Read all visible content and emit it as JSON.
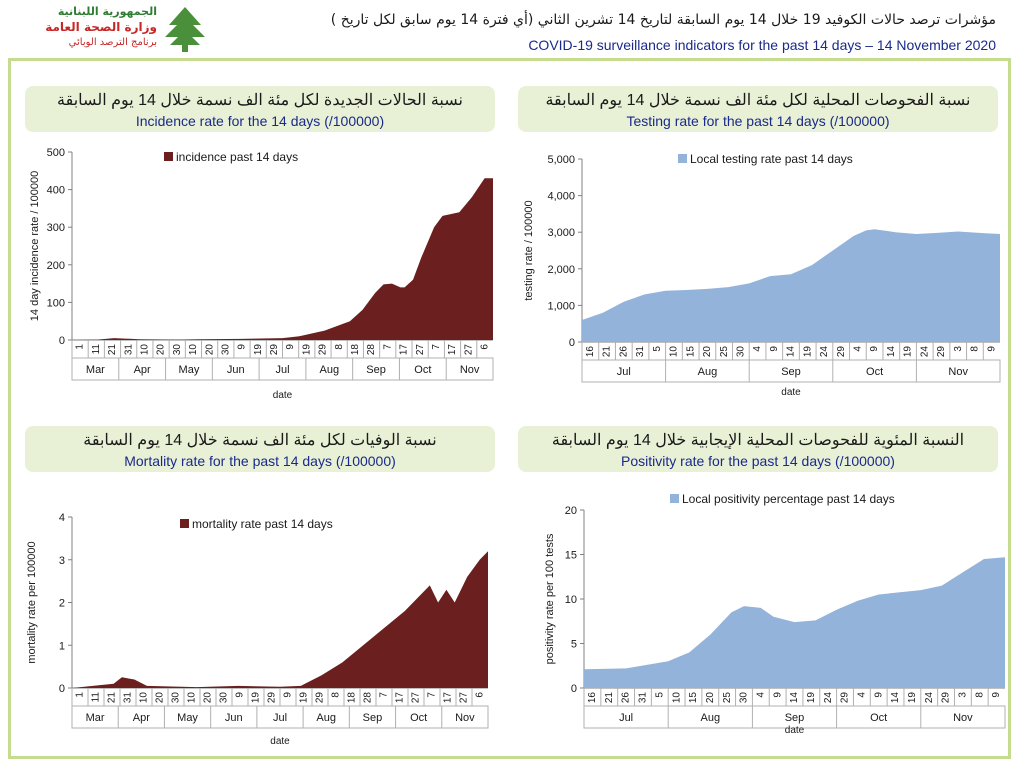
{
  "header": {
    "logo": {
      "line1": "الجمهورية اللبنانية",
      "line2": "وزارة الصحة العامة",
      "line3": "برنامج الترصد الوبائي"
    },
    "title_ar": "مؤشرات ترصد حالات الكوفيد 19 خلال 14 يوم السابقة لتاريخ 14 تشرين الثاني (أي فترة 14 يوم سابق لكل تاريخ )",
    "title_en": "COVID-19 surveillance indicators for the past 14 days – 14 November 2020"
  },
  "panels": {
    "incidence": {
      "title_ar": "نسبة الحالات الجديدة لكل مئة الف نسمة خلال 14 يوم السابقة",
      "title_en": "Incidence rate for the 14 days  (/100000)"
    },
    "testing": {
      "title_ar": "نسبة الفحوصات المحلية لكل مئة الف نسمة خلال 14 يوم السابقة",
      "title_en": "Testing rate for the past 14 days (/100000)"
    },
    "mortality": {
      "title_ar": "نسبة الوفيات لكل مئة الف نسمة خلال 14 يوم السابقة",
      "title_en": "Mortality rate for the past 14 days (/100000)"
    },
    "positivity": {
      "title_ar": "النسبة المئوية للفحوصات المحلية الإيجابية خلال 14 يوم السابقة",
      "title_en": "Positivity rate for the past 14 days (/100000)"
    }
  },
  "chart_data": [
    {
      "id": "incidence",
      "type": "area",
      "series": [
        {
          "name": "incidence past 14 days",
          "color": "#6b1f1f"
        }
      ],
      "ylabel": "14 day incidence rate / 100000",
      "xlabel": "date",
      "ylim": [
        0,
        500
      ],
      "yticks": [
        "0",
        "100",
        "200",
        "300",
        "400",
        "500"
      ],
      "x_tick_labels": [
        "1",
        "11",
        "21",
        "31",
        "10",
        "20",
        "30",
        "10",
        "20",
        "30",
        "9",
        "19",
        "29",
        "9",
        "19",
        "29",
        "8",
        "18",
        "28",
        "7",
        "17",
        "27",
        "7",
        "17",
        "27",
        "6"
      ],
      "months": [
        "Mar",
        "Apr",
        "May",
        "Jun",
        "Jul",
        "Aug",
        "Sep",
        "Oct",
        "Nov"
      ],
      "points": [
        [
          0,
          0
        ],
        [
          0.06,
          1
        ],
        [
          0.1,
          5
        ],
        [
          0.12,
          4
        ],
        [
          0.16,
          2
        ],
        [
          0.25,
          1
        ],
        [
          0.3,
          2
        ],
        [
          0.4,
          3
        ],
        [
          0.5,
          5
        ],
        [
          0.54,
          10
        ],
        [
          0.6,
          25
        ],
        [
          0.66,
          50
        ],
        [
          0.69,
          80
        ],
        [
          0.72,
          125
        ],
        [
          0.74,
          148
        ],
        [
          0.76,
          150
        ],
        [
          0.78,
          140
        ],
        [
          0.79,
          140
        ],
        [
          0.81,
          160
        ],
        [
          0.83,
          220
        ],
        [
          0.86,
          300
        ],
        [
          0.88,
          330
        ],
        [
          0.92,
          340
        ],
        [
          0.95,
          380
        ],
        [
          0.98,
          430
        ],
        [
          1,
          430
        ]
      ],
      "legend_position": "top"
    },
    {
      "id": "testing",
      "type": "area",
      "series": [
        {
          "name": "Local testing rate past 14 days",
          "color": "#93b3db"
        }
      ],
      "ylabel": "testing rate / 100000",
      "xlabel": "date",
      "ylim": [
        0,
        5000
      ],
      "yticks": [
        "0",
        "1,000",
        "2,000",
        "3,000",
        "4,000",
        "5,000"
      ],
      "x_tick_labels": [
        "16",
        "21",
        "26",
        "31",
        "5",
        "10",
        "15",
        "20",
        "25",
        "30",
        "4",
        "9",
        "14",
        "19",
        "24",
        "29",
        "4",
        "9",
        "14",
        "19",
        "24",
        "29",
        "3",
        "8",
        "9"
      ],
      "months": [
        "Jul",
        "Aug",
        "Sep",
        "Oct",
        "Nov"
      ],
      "points": [
        [
          0,
          600
        ],
        [
          0.05,
          800
        ],
        [
          0.1,
          1100
        ],
        [
          0.15,
          1300
        ],
        [
          0.2,
          1400
        ],
        [
          0.25,
          1420
        ],
        [
          0.3,
          1450
        ],
        [
          0.35,
          1500
        ],
        [
          0.4,
          1600
        ],
        [
          0.45,
          1800
        ],
        [
          0.5,
          1850
        ],
        [
          0.55,
          2100
        ],
        [
          0.6,
          2500
        ],
        [
          0.65,
          2900
        ],
        [
          0.68,
          3050
        ],
        [
          0.7,
          3080
        ],
        [
          0.75,
          3000
        ],
        [
          0.8,
          2950
        ],
        [
          0.85,
          2980
        ],
        [
          0.9,
          3020
        ],
        [
          0.95,
          2980
        ],
        [
          1,
          2950
        ]
      ],
      "legend_position": "top"
    },
    {
      "id": "mortality",
      "type": "area",
      "series": [
        {
          "name": "mortality rate past 14 days",
          "color": "#6b1f1f"
        }
      ],
      "ylabel": "mortality rate per 100000",
      "xlabel": "date",
      "ylim": [
        0,
        4
      ],
      "yticks": [
        "0",
        "1",
        "2",
        "3",
        "4"
      ],
      "x_tick_labels": [
        "1",
        "11",
        "21",
        "31",
        "10",
        "20",
        "30",
        "10",
        "20",
        "30",
        "9",
        "19",
        "29",
        "9",
        "19",
        "29",
        "8",
        "18",
        "28",
        "7",
        "17",
        "27",
        "7",
        "17",
        "27",
        "6"
      ],
      "months": [
        "Mar",
        "Apr",
        "May",
        "Jun",
        "Jul",
        "Aug",
        "Sep",
        "Oct",
        "Nov"
      ],
      "points": [
        [
          0,
          0
        ],
        [
          0.05,
          0.05
        ],
        [
          0.1,
          0.1
        ],
        [
          0.12,
          0.25
        ],
        [
          0.15,
          0.2
        ],
        [
          0.18,
          0.05
        ],
        [
          0.3,
          0.02
        ],
        [
          0.4,
          0.05
        ],
        [
          0.5,
          0.03
        ],
        [
          0.55,
          0.05
        ],
        [
          0.6,
          0.3
        ],
        [
          0.65,
          0.6
        ],
        [
          0.7,
          1
        ],
        [
          0.75,
          1.4
        ],
        [
          0.8,
          1.8
        ],
        [
          0.84,
          2.2
        ],
        [
          0.86,
          2.4
        ],
        [
          0.88,
          2
        ],
        [
          0.9,
          2.3
        ],
        [
          0.92,
          2
        ],
        [
          0.95,
          2.6
        ],
        [
          0.98,
          3
        ],
        [
          1,
          3.2
        ]
      ],
      "legend_position": "top"
    },
    {
      "id": "positivity",
      "type": "area",
      "series": [
        {
          "name": "Local positivity percentage past 14 days",
          "color": "#93b3db"
        }
      ],
      "ylabel": "positivity rate per 100 tests",
      "xlabel": "date",
      "ylim": [
        0,
        20
      ],
      "yticks": [
        "0",
        "5",
        "10",
        "15",
        "20"
      ],
      "x_tick_labels": [
        "16",
        "21",
        "26",
        "31",
        "5",
        "10",
        "15",
        "20",
        "25",
        "30",
        "4",
        "9",
        "14",
        "19",
        "24",
        "29",
        "4",
        "9",
        "14",
        "19",
        "24",
        "29",
        "3",
        "8",
        "9"
      ],
      "months": [
        "Jul",
        "Aug",
        "Sep",
        "Oct",
        "Nov"
      ],
      "points": [
        [
          0,
          2.1
        ],
        [
          0.1,
          2.2
        ],
        [
          0.2,
          3
        ],
        [
          0.25,
          4
        ],
        [
          0.3,
          6
        ],
        [
          0.35,
          8.5
        ],
        [
          0.38,
          9.2
        ],
        [
          0.42,
          9
        ],
        [
          0.45,
          8
        ],
        [
          0.5,
          7.4
        ],
        [
          0.55,
          7.6
        ],
        [
          0.6,
          8.8
        ],
        [
          0.65,
          9.8
        ],
        [
          0.7,
          10.5
        ],
        [
          0.8,
          11
        ],
        [
          0.85,
          11.5
        ],
        [
          0.9,
          13
        ],
        [
          0.95,
          14.5
        ],
        [
          1,
          14.7
        ]
      ],
      "legend_position": "top"
    }
  ]
}
